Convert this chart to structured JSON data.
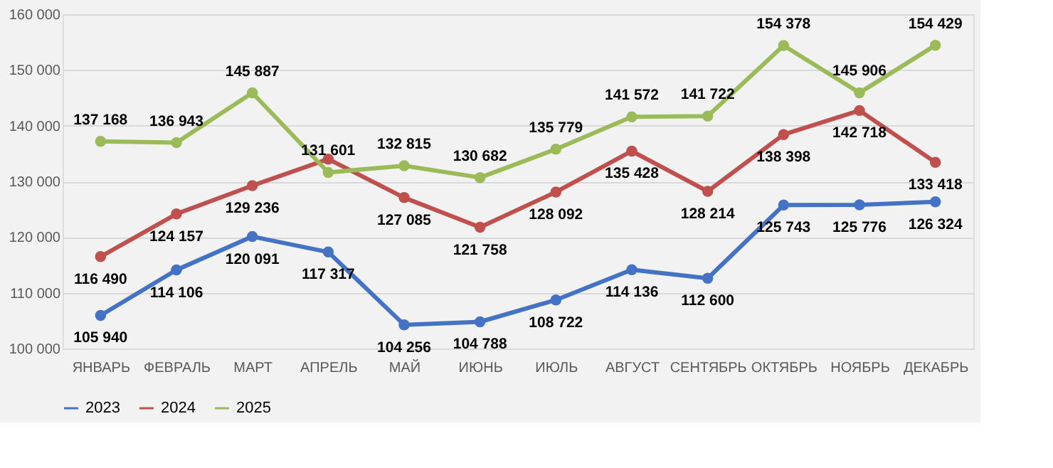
{
  "chart_data": {
    "type": "line",
    "categories": [
      "ЯНВАРЬ",
      "ФЕВРАЛЬ",
      "МАРТ",
      "АПРЕЛЬ",
      "МАЙ",
      "ИЮНЬ",
      "ИЮЛЬ",
      "АВГУСТ",
      "СЕНТЯБРЬ",
      "ОКТЯБРЬ",
      "НОЯБРЬ",
      "ДЕКАБРЬ"
    ],
    "series": [
      {
        "name": "2023",
        "color": "#4472c4",
        "values": [
          105940,
          114106,
          120091,
          117317,
          104256,
          104788,
          108722,
          114136,
          112600,
          125743,
          125776,
          126324
        ],
        "value_labels": [
          "105 940",
          "114 106",
          "120 091",
          "117 317",
          "104 256",
          "104 788",
          "108 722",
          "114 136",
          "112 600",
          "125 743",
          "125 776",
          "126 324"
        ]
      },
      {
        "name": "2024",
        "color": "#c0504d",
        "values": [
          116490,
          124157,
          129236,
          134000,
          127085,
          121758,
          128092,
          135428,
          128214,
          138398,
          142718,
          133418
        ],
        "value_labels": [
          "116 490",
          "124 157",
          "129 236",
          null,
          "127 085",
          "121 758",
          "128 092",
          "135 428",
          "128 214",
          "138 398",
          "142 718",
          "133 418"
        ]
      },
      {
        "name": "2025",
        "color": "#9bbb59",
        "values": [
          137168,
          136943,
          145887,
          131601,
          132815,
          130682,
          135779,
          141572,
          141722,
          154378,
          145906,
          154429
        ],
        "value_labels": [
          "137 168",
          "136 943",
          "145 887",
          "131 601",
          "132 815",
          "130 682",
          "135 779",
          "141 572",
          "141 722",
          "154 378",
          "145 906",
          "154 429"
        ]
      }
    ],
    "ylim": [
      100000,
      160000
    ],
    "yticks": [
      {
        "value": 100000,
        "label": "100 000"
      },
      {
        "value": 110000,
        "label": "110 000"
      },
      {
        "value": 120000,
        "label": "120 000"
      },
      {
        "value": 130000,
        "label": "130 000"
      },
      {
        "value": 140000,
        "label": "140 000"
      },
      {
        "value": 150000,
        "label": "150 000"
      },
      {
        "value": 160000,
        "label": "160 000"
      }
    ],
    "grid": "y",
    "legend": "bottom",
    "marker": "circle",
    "line_style": "solid"
  }
}
